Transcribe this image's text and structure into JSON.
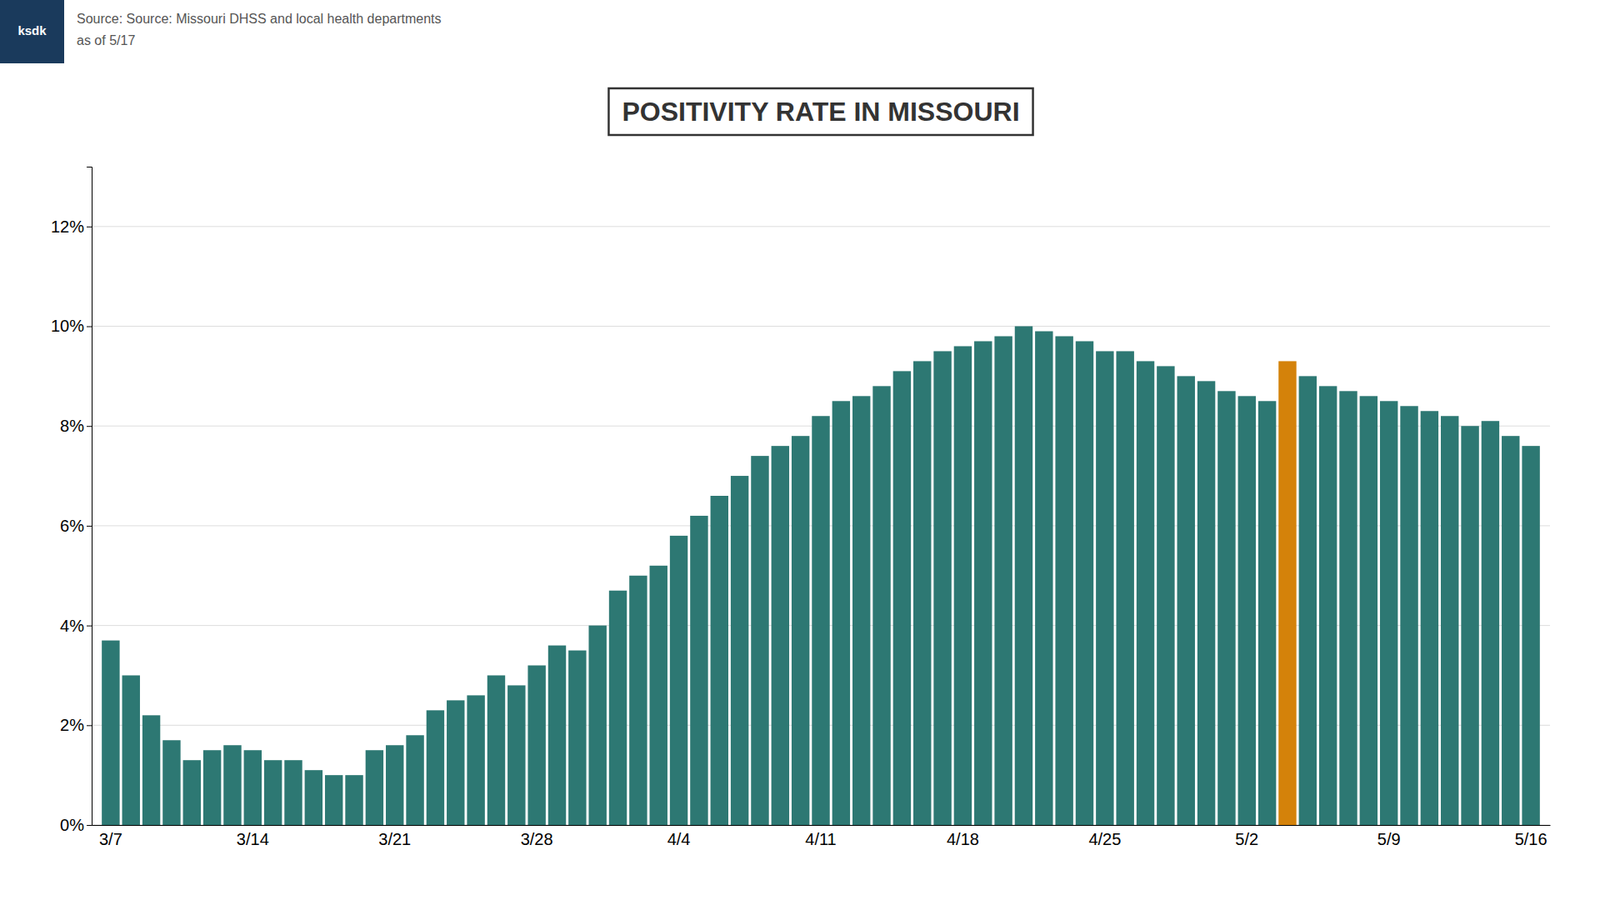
{
  "chart_data": {
    "type": "bar",
    "title": "POSITIVITY RATE IN MISSOURI",
    "annotations": [
      "Source: Source: Missouri DHSS and local health departments",
      "as of 5/17",
      "ksdk"
    ],
    "categories": [
      "3/7",
      null,
      null,
      null,
      null,
      null,
      null,
      "3/14",
      null,
      null,
      null,
      null,
      null,
      null,
      "3/21",
      null,
      null,
      null,
      null,
      null,
      null,
      "3/28",
      null,
      null,
      null,
      null,
      null,
      null,
      "4/4",
      null,
      null,
      null,
      null,
      null,
      null,
      "4/11",
      null,
      null,
      null,
      null,
      null,
      null,
      "4/18",
      null,
      null,
      null,
      null,
      null,
      null,
      "4/25",
      null,
      null,
      null,
      null,
      null,
      null,
      "5/2",
      null,
      null,
      null,
      null,
      null,
      null,
      "5/9",
      null,
      null,
      null,
      null,
      null,
      null,
      "5/16"
    ],
    "values": [
      3.7,
      3.0,
      2.2,
      1.7,
      1.3,
      1.5,
      1.6,
      1.5,
      1.3,
      1.3,
      1.1,
      1.0,
      1.0,
      1.5,
      1.6,
      1.8,
      2.3,
      2.5,
      2.6,
      3.0,
      2.8,
      3.2,
      3.6,
      3.5,
      4.0,
      4.7,
      5.0,
      5.2,
      5.8,
      6.2,
      6.6,
      7.0,
      7.4,
      7.6,
      7.8,
      8.2,
      8.5,
      8.6,
      8.8,
      9.1,
      9.3,
      9.5,
      9.6,
      9.7,
      9.8,
      10.0,
      9.9,
      9.8,
      9.7,
      9.5,
      9.5,
      9.3,
      9.2,
      9.0,
      8.9,
      8.7,
      8.6,
      8.5,
      9.3,
      9.0,
      8.8,
      8.7,
      8.6,
      8.5,
      8.4,
      8.3,
      8.2,
      8.0,
      8.1,
      7.8,
      7.6
    ],
    "colors": [
      "#2D7873",
      "#2D7873",
      "#2D7873",
      "#2D7873",
      "#2D7873",
      "#2D7873",
      "#2D7873",
      "#2D7873",
      "#2D7873",
      "#2D7873",
      "#2D7873",
      "#2D7873",
      "#2D7873",
      "#2D7873",
      "#2D7873",
      "#2D7873",
      "#2D7873",
      "#2D7873",
      "#2D7873",
      "#2D7873",
      "#2D7873",
      "#2D7873",
      "#2D7873",
      "#2D7873",
      "#2D7873",
      "#2D7873",
      "#2D7873",
      "#2D7873",
      "#2D7873",
      "#2D7873",
      "#2D7873",
      "#2D7873",
      "#2D7873",
      "#2D7873",
      "#2D7873",
      "#2D7873",
      "#2D7873",
      "#2D7873",
      "#2D7873",
      "#2D7873",
      "#2D7873",
      "#2D7873",
      "#2D7873",
      "#2D7873",
      "#2D7873",
      "#2D7873",
      "#2D7873",
      "#2D7873",
      "#2D7873",
      "#2D7873",
      "#2D7873",
      "#2D7873",
      "#2D7873",
      "#2D7873",
      "#2D7873",
      "#2D7873",
      "#2D7873",
      "#2D7873",
      "#D4820A",
      "#2D7873",
      "#2D7873",
      "#2D7873",
      "#2D7873",
      "#2D7873",
      "#2D7873",
      "#2D7873",
      "#2D7873",
      "#2D7873",
      "#2D7873",
      "#2D7873",
      "#2D7873"
    ],
    "ylim": [
      0,
      13.2
    ],
    "yticks": [
      {
        "value": 0,
        "label": "0%"
      },
      {
        "value": 2,
        "label": "2%"
      },
      {
        "value": 4,
        "label": "4%"
      },
      {
        "value": 6,
        "label": "6%"
      },
      {
        "value": 8,
        "label": "8%"
      },
      {
        "value": 10,
        "label": "10%"
      },
      {
        "value": 12,
        "label": "12%"
      }
    ],
    "grid": true
  }
}
